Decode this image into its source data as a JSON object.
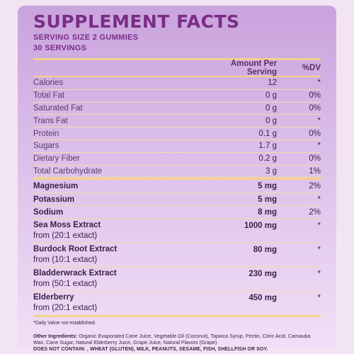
{
  "title": "SUPPLEMENT FACTS",
  "serving_size": "SERVING SIZE 2 GUMMIES",
  "servings": "30 SERVINGS",
  "header": {
    "amount": "Amount Per Serving",
    "dv": "%DV"
  },
  "nutrients": [
    {
      "name": "Calories",
      "amount": "12",
      "dv": "*"
    },
    {
      "name": "Total Fat",
      "amount": "0 g",
      "dv": "0%"
    },
    {
      "name": "Saturated Fat",
      "amount": "0 g",
      "dv": "0%"
    },
    {
      "name": "Trans Fat",
      "amount": "0 g",
      "dv": "*"
    },
    {
      "name": "Protein",
      "amount": "0.1 g",
      "dv": "0%"
    },
    {
      "name": "Sugars",
      "amount": "1.7 g",
      "dv": "*"
    },
    {
      "name": "Dietary Fiber",
      "amount": "0.2 g",
      "dv": "0%"
    },
    {
      "name": "Total Carbohydrate",
      "amount": "3 g",
      "dv": "1%"
    }
  ],
  "minerals": [
    {
      "name": "Magnesium",
      "amount": "5 mg",
      "dv": "2%"
    },
    {
      "name": "Potassium",
      "amount": "5 mg",
      "dv": "*"
    },
    {
      "name": "Sodium",
      "amount": "8 mg",
      "dv": "2%"
    }
  ],
  "extracts": [
    {
      "name": "Sea Moss Extract",
      "sub": "from (20:1 extact)",
      "amount": "1000 mg",
      "dv": "*"
    },
    {
      "name": "Burdock Root Extract",
      "sub": "from (10:1 extact)",
      "amount": "80 mg",
      "dv": "*"
    },
    {
      "name": "Bladderwrack Extract",
      "sub": "from (50:1 extact)",
      "amount": "230 mg",
      "dv": "*"
    },
    {
      "name": "Elderberry",
      "sub": "from (20:1 extact)",
      "amount": "450 mg",
      "dv": "*"
    }
  ],
  "footnote": "*Daily Value not established.",
  "ingredients_label": "Other Ingredients:",
  "ingredients_text": "Organic Evaporated Cane Juice, Vegetable Oil (Coconut), Tapioca Syrup, Pectin, Citric Acid, Carnauba Wax, Cane Sugar, Natural Elderberry Juice, Grape Juice, Natural Flavors (Grape)",
  "allergen": "DOES NOT CONTAIN: , WHEAT (GLUTEN), MILK, PEANUTS, SESAME, FISH, SHELLFISH OR SOY."
}
